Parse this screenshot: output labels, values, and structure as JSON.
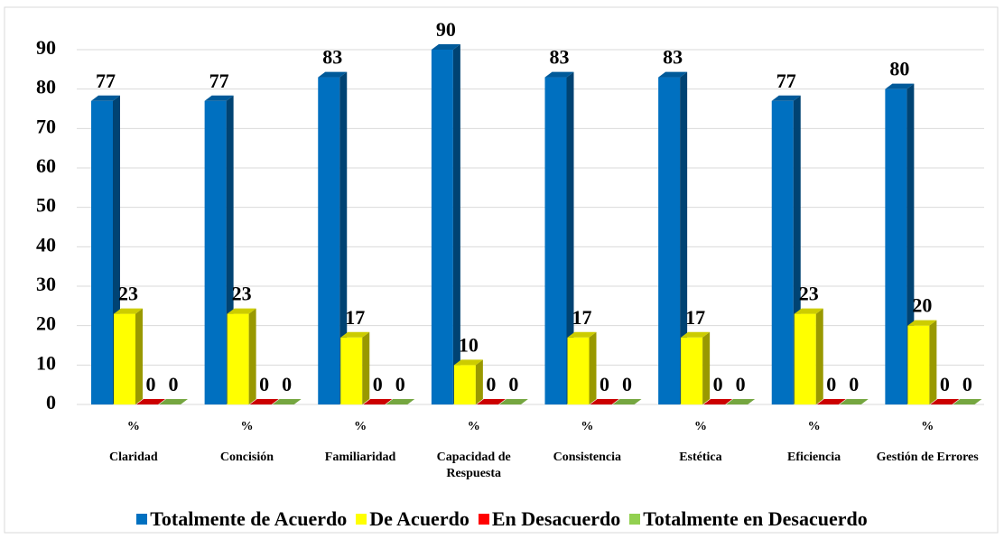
{
  "chart_data": {
    "type": "bar3d",
    "categories": [
      "Claridad",
      "Concisión",
      "Familiaridad",
      "Capacidad de Respuesta",
      "Consistencia",
      "Estética",
      "Eficiencia",
      "Gestión de Errores"
    ],
    "category_unit": "%",
    "series": [
      {
        "name": "Totalmente de Acuerdo",
        "color": "#0070c0",
        "values": [
          77,
          77,
          83,
          90,
          83,
          83,
          77,
          80
        ]
      },
      {
        "name": "De Acuerdo",
        "color": "#ffff00",
        "values": [
          23,
          23,
          17,
          10,
          17,
          17,
          23,
          20
        ]
      },
      {
        "name": "En Desacuerdo",
        "color": "#ff0000",
        "values": [
          0,
          0,
          0,
          0,
          0,
          0,
          0,
          0
        ]
      },
      {
        "name": "Totalmente en Desacuerdo",
        "color": "#92d050",
        "values": [
          0,
          0,
          0,
          0,
          0,
          0,
          0,
          0
        ]
      }
    ],
    "ylim": [
      0,
      90
    ],
    "yticks": [
      0,
      10,
      20,
      30,
      40,
      50,
      60,
      70,
      80,
      90
    ],
    "grid": true,
    "legend": "bottom"
  }
}
